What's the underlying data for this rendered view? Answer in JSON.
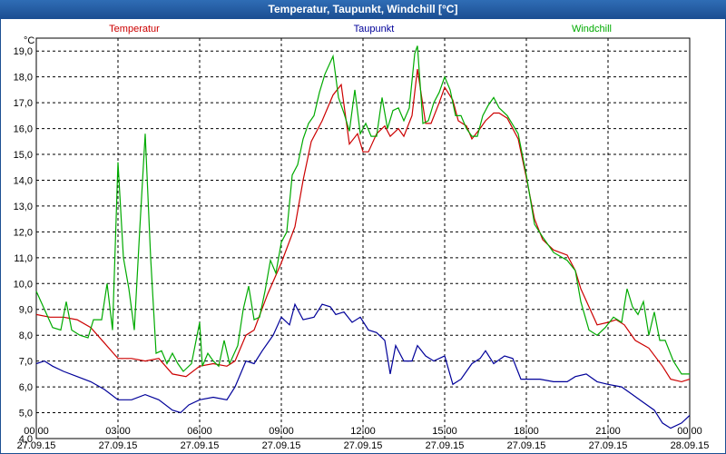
{
  "window": {
    "title": "Temperatur, Taupunkt, Windchill [°C]"
  },
  "chart_data": {
    "type": "line",
    "title": "Temperatur, Taupunkt, Windchill [°C]",
    "yunit": "°C",
    "ylim": [
      4.0,
      19.5
    ],
    "yticks": [
      "4,0",
      "5,0",
      "6,0",
      "7,0",
      "8,0",
      "9,0",
      "10,0",
      "11,0",
      "12,0",
      "13,0",
      "14,0",
      "15,0",
      "16,0",
      "17,0",
      "18,0",
      "19,0"
    ],
    "xlim": [
      0,
      24
    ],
    "xticks": [
      {
        "time": "00:00",
        "date": "27.09.15"
      },
      {
        "time": "03:00",
        "date": "27.09.15"
      },
      {
        "time": "06:00",
        "date": "27.09.15"
      },
      {
        "time": "09:00",
        "date": "27.09.15"
      },
      {
        "time": "12:00",
        "date": "27.09.15"
      },
      {
        "time": "15:00",
        "date": "27.09.15"
      },
      {
        "time": "18:00",
        "date": "27.09.15"
      },
      {
        "time": "21:00",
        "date": "27.09.15"
      },
      {
        "time": "00:00",
        "date": "28.09.15"
      }
    ],
    "grid": true,
    "series": [
      {
        "name": "Temperatur",
        "color": "#cc0000",
        "legend_pos": "left",
        "points": [
          [
            0,
            8.8
          ],
          [
            0.5,
            8.7
          ],
          [
            1,
            8.7
          ],
          [
            1.5,
            8.6
          ],
          [
            2,
            8.3
          ],
          [
            2.5,
            7.7
          ],
          [
            3,
            7.1
          ],
          [
            3.5,
            7.1
          ],
          [
            4,
            7.0
          ],
          [
            4.5,
            7.1
          ],
          [
            5,
            6.5
          ],
          [
            5.5,
            6.4
          ],
          [
            6,
            6.8
          ],
          [
            6.5,
            6.9
          ],
          [
            7,
            6.8
          ],
          [
            7.3,
            7.0
          ],
          [
            7.7,
            8.0
          ],
          [
            8,
            8.2
          ],
          [
            8.5,
            9.6
          ],
          [
            9,
            10.8
          ],
          [
            9.5,
            12.2
          ],
          [
            9.8,
            14.0
          ],
          [
            10.1,
            15.5
          ],
          [
            10.5,
            16.3
          ],
          [
            10.9,
            17.3
          ],
          [
            11.2,
            17.7
          ],
          [
            11.5,
            15.4
          ],
          [
            11.8,
            15.8
          ],
          [
            12,
            15.1
          ],
          [
            12.2,
            15.1
          ],
          [
            12.5,
            15.8
          ],
          [
            12.8,
            16.1
          ],
          [
            13,
            15.7
          ],
          [
            13.3,
            16.0
          ],
          [
            13.5,
            15.7
          ],
          [
            13.8,
            16.5
          ],
          [
            14,
            18.3
          ],
          [
            14.3,
            16.2
          ],
          [
            14.5,
            16.2
          ],
          [
            14.8,
            17.0
          ],
          [
            15,
            17.6
          ],
          [
            15.3,
            17.1
          ],
          [
            15.5,
            16.3
          ],
          [
            15.8,
            16.1
          ],
          [
            16,
            15.6
          ],
          [
            16.3,
            16.0
          ],
          [
            16.5,
            16.3
          ],
          [
            16.8,
            16.6
          ],
          [
            17,
            16.6
          ],
          [
            17.3,
            16.4
          ],
          [
            17.7,
            15.6
          ],
          [
            18,
            14.1
          ],
          [
            18.3,
            12.5
          ],
          [
            18.6,
            11.7
          ],
          [
            19,
            11.3
          ],
          [
            19.5,
            11.1
          ],
          [
            19.8,
            10.5
          ],
          [
            20,
            9.8
          ],
          [
            20.3,
            9.1
          ],
          [
            20.6,
            8.4
          ],
          [
            21,
            8.5
          ],
          [
            21.3,
            8.6
          ],
          [
            21.6,
            8.4
          ],
          [
            22,
            7.8
          ],
          [
            22.5,
            7.5
          ],
          [
            23,
            6.8
          ],
          [
            23.3,
            6.3
          ],
          [
            23.7,
            6.2
          ],
          [
            24,
            6.3
          ]
        ]
      },
      {
        "name": "Taupunkt",
        "color": "#000099",
        "legend_pos": "center",
        "points": [
          [
            0,
            6.9
          ],
          [
            0.3,
            7.0
          ],
          [
            0.6,
            6.8
          ],
          [
            1,
            6.6
          ],
          [
            1.5,
            6.4
          ],
          [
            2,
            6.2
          ],
          [
            2.5,
            5.9
          ],
          [
            3,
            5.5
          ],
          [
            3.5,
            5.5
          ],
          [
            4,
            5.7
          ],
          [
            4.5,
            5.5
          ],
          [
            5,
            5.1
          ],
          [
            5.3,
            5.0
          ],
          [
            5.6,
            5.3
          ],
          [
            6,
            5.5
          ],
          [
            6.5,
            5.6
          ],
          [
            7,
            5.5
          ],
          [
            7.3,
            6.0
          ],
          [
            7.7,
            7.0
          ],
          [
            8,
            6.9
          ],
          [
            8.3,
            7.4
          ],
          [
            8.7,
            8.0
          ],
          [
            9,
            8.7
          ],
          [
            9.3,
            8.4
          ],
          [
            9.5,
            9.2
          ],
          [
            9.8,
            8.6
          ],
          [
            10.2,
            8.7
          ],
          [
            10.5,
            9.2
          ],
          [
            10.8,
            9.1
          ],
          [
            11,
            8.8
          ],
          [
            11.3,
            8.9
          ],
          [
            11.6,
            8.5
          ],
          [
            11.9,
            8.7
          ],
          [
            12.2,
            8.2
          ],
          [
            12.5,
            8.1
          ],
          [
            12.8,
            7.8
          ],
          [
            13,
            6.5
          ],
          [
            13.2,
            7.6
          ],
          [
            13.5,
            7.0
          ],
          [
            13.8,
            7.0
          ],
          [
            14,
            7.6
          ],
          [
            14.3,
            7.2
          ],
          [
            14.6,
            7.0
          ],
          [
            15,
            7.2
          ],
          [
            15.3,
            6.1
          ],
          [
            15.6,
            6.3
          ],
          [
            16,
            6.9
          ],
          [
            16.3,
            7.1
          ],
          [
            16.5,
            7.4
          ],
          [
            16.8,
            6.9
          ],
          [
            17.2,
            7.2
          ],
          [
            17.5,
            7.1
          ],
          [
            17.8,
            6.3
          ],
          [
            18.5,
            6.3
          ],
          [
            19,
            6.2
          ],
          [
            19.5,
            6.2
          ],
          [
            19.8,
            6.4
          ],
          [
            20.2,
            6.5
          ],
          [
            20.6,
            6.2
          ],
          [
            21,
            6.1
          ],
          [
            21.5,
            6.0
          ],
          [
            21.9,
            5.7
          ],
          [
            22.3,
            5.4
          ],
          [
            22.7,
            5.1
          ],
          [
            23,
            4.6
          ],
          [
            23.3,
            4.4
          ],
          [
            23.7,
            4.6
          ],
          [
            24,
            4.9
          ]
        ]
      },
      {
        "name": "Windchill",
        "color": "#00aa00",
        "legend_pos": "right",
        "points": [
          [
            0,
            9.7
          ],
          [
            0.3,
            9.0
          ],
          [
            0.6,
            8.3
          ],
          [
            0.9,
            8.2
          ],
          [
            1.1,
            9.3
          ],
          [
            1.3,
            8.2
          ],
          [
            1.6,
            8.0
          ],
          [
            1.9,
            7.9
          ],
          [
            2.1,
            8.6
          ],
          [
            2.4,
            8.6
          ],
          [
            2.6,
            10.0
          ],
          [
            2.8,
            8.2
          ],
          [
            3,
            14.7
          ],
          [
            3.2,
            11.0
          ],
          [
            3.4,
            9.8
          ],
          [
            3.6,
            8.2
          ],
          [
            3.8,
            12.1
          ],
          [
            4,
            15.8
          ],
          [
            4.2,
            11.0
          ],
          [
            4.4,
            7.3
          ],
          [
            4.6,
            7.4
          ],
          [
            4.8,
            6.9
          ],
          [
            5,
            7.3
          ],
          [
            5.2,
            6.9
          ],
          [
            5.4,
            6.6
          ],
          [
            5.7,
            6.9
          ],
          [
            6,
            8.5
          ],
          [
            6.1,
            6.8
          ],
          [
            6.3,
            7.3
          ],
          [
            6.5,
            7.0
          ],
          [
            6.7,
            6.8
          ],
          [
            6.9,
            7.8
          ],
          [
            7.1,
            6.9
          ],
          [
            7.4,
            7.6
          ],
          [
            7.6,
            9.0
          ],
          [
            7.8,
            9.9
          ],
          [
            8,
            8.6
          ],
          [
            8.2,
            8.7
          ],
          [
            8.4,
            9.7
          ],
          [
            8.6,
            10.9
          ],
          [
            8.8,
            10.4
          ],
          [
            9,
            11.6
          ],
          [
            9.2,
            12.0
          ],
          [
            9.4,
            14.2
          ],
          [
            9.6,
            14.6
          ],
          [
            9.8,
            15.6
          ],
          [
            10,
            16.2
          ],
          [
            10.2,
            16.5
          ],
          [
            10.4,
            17.4
          ],
          [
            10.6,
            18.1
          ],
          [
            10.9,
            18.8
          ],
          [
            11.1,
            17.2
          ],
          [
            11.3,
            16.6
          ],
          [
            11.5,
            15.9
          ],
          [
            11.7,
            17.5
          ],
          [
            11.9,
            15.8
          ],
          [
            12.1,
            16.2
          ],
          [
            12.3,
            15.7
          ],
          [
            12.5,
            15.7
          ],
          [
            12.7,
            17.2
          ],
          [
            12.9,
            16.0
          ],
          [
            13.1,
            16.7
          ],
          [
            13.3,
            16.8
          ],
          [
            13.5,
            16.3
          ],
          [
            13.7,
            16.8
          ],
          [
            13.9,
            18.9
          ],
          [
            14,
            19.2
          ],
          [
            14.2,
            16.2
          ],
          [
            14.4,
            16.3
          ],
          [
            14.6,
            17.0
          ],
          [
            14.8,
            17.4
          ],
          [
            15,
            18.0
          ],
          [
            15.2,
            17.5
          ],
          [
            15.4,
            16.5
          ],
          [
            15.6,
            16.5
          ],
          [
            15.8,
            16.0
          ],
          [
            16,
            15.7
          ],
          [
            16.2,
            15.7
          ],
          [
            16.4,
            16.5
          ],
          [
            16.6,
            16.9
          ],
          [
            16.8,
            17.2
          ],
          [
            17,
            16.8
          ],
          [
            17.3,
            16.5
          ],
          [
            17.7,
            15.8
          ],
          [
            18,
            14.2
          ],
          [
            18.3,
            12.3
          ],
          [
            18.6,
            11.8
          ],
          [
            19,
            11.2
          ],
          [
            19.5,
            10.9
          ],
          [
            19.8,
            10.5
          ],
          [
            20,
            9.3
          ],
          [
            20.3,
            8.2
          ],
          [
            20.6,
            8.0
          ],
          [
            20.9,
            8.3
          ],
          [
            21.2,
            8.7
          ],
          [
            21.5,
            8.5
          ],
          [
            21.7,
            9.8
          ],
          [
            21.9,
            9.1
          ],
          [
            22.1,
            8.8
          ],
          [
            22.3,
            9.3
          ],
          [
            22.5,
            8.0
          ],
          [
            22.7,
            8.9
          ],
          [
            22.9,
            7.8
          ],
          [
            23.1,
            7.8
          ],
          [
            23.4,
            7.0
          ],
          [
            23.7,
            6.5
          ],
          [
            24,
            6.5
          ]
        ]
      }
    ]
  }
}
